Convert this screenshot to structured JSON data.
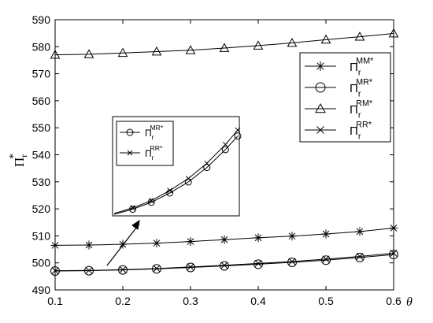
{
  "chart_data": {
    "type": "line",
    "ylabel": "Π",
    "ylabel_sup": "*",
    "ylabel_sub": "r",
    "xlabel": "θ",
    "xlim": [
      0.1,
      0.6
    ],
    "ylim": [
      490,
      590
    ],
    "xticks": [
      "0.1",
      "0.2",
      "0.3",
      "0.4",
      "0.5",
      "0.6"
    ],
    "yticks": [
      "490",
      "500",
      "510",
      "520",
      "530",
      "540",
      "550",
      "560",
      "570",
      "580",
      "590"
    ],
    "x": [
      0.1,
      0.15,
      0.2,
      0.25,
      0.3,
      0.35,
      0.4,
      0.45,
      0.5,
      0.55,
      0.6
    ],
    "series": [
      {
        "name": "Π",
        "sup": "MM*",
        "sub": "r",
        "marker": "star",
        "values": [
          506.5,
          506.6,
          506.9,
          507.3,
          507.9,
          508.6,
          509.3,
          509.9,
          510.7,
          511.6,
          512.9
        ]
      },
      {
        "name": "Π",
        "sup": "MR*",
        "sub": "r",
        "marker": "circle",
        "values": [
          497.0,
          497.1,
          497.4,
          497.8,
          498.3,
          498.9,
          499.5,
          500.2,
          501.0,
          502.0,
          503.1
        ]
      },
      {
        "name": "Π",
        "sup": "RM*",
        "sub": "r",
        "marker": "triangle",
        "values": [
          577.0,
          577.2,
          577.7,
          578.2,
          578.7,
          579.5,
          580.4,
          581.4,
          582.6,
          583.7,
          584.9
        ]
      },
      {
        "name": "Π",
        "sup": "RR*",
        "sub": "r",
        "marker": "x",
        "values": [
          497.1,
          497.2,
          497.5,
          497.9,
          498.5,
          499.1,
          499.8,
          500.5,
          501.4,
          502.4,
          503.6
        ]
      }
    ],
    "legend_position": "right",
    "inset": {
      "legend": [
        {
          "name": "Π",
          "sup": "MR*",
          "sub": "r",
          "marker": "circle"
        },
        {
          "name": "Π",
          "sup": "RR*",
          "sub": "r",
          "marker": "x"
        }
      ]
    }
  }
}
